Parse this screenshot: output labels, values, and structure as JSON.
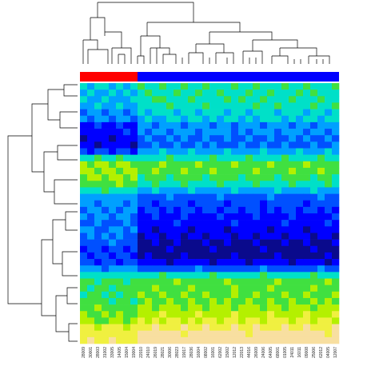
{
  "chart_data": {
    "type": "heatmap",
    "colorscale": [
      "#0a0a8c",
      "#0000ff",
      "#0050ff",
      "#00a0ff",
      "#00e0c8",
      "#40e040",
      "#b4f000",
      "#f0f040",
      "#f8dfa0"
    ],
    "categories": [
      "28009",
      "30001",
      "28003",
      "31002",
      "33005",
      "14005",
      "15004",
      "19004",
      "22010",
      "24010",
      "26019",
      "28021",
      "30006",
      "28023",
      "19017",
      "28036",
      "16004",
      "08002",
      "16001",
      "62002",
      "15002",
      "12012",
      "22013",
      "44016",
      "26009",
      "24006",
      "64005",
      "68001",
      "01005",
      "24011",
      "16011",
      "09008",
      "25006",
      "62012",
      "04005",
      "12007"
    ],
    "values": [
      [
        4,
        3,
        4,
        4,
        3,
        4,
        3,
        4,
        5,
        4,
        4,
        5,
        4,
        4,
        5,
        4,
        4,
        5,
        4,
        4,
        4,
        5,
        4,
        4,
        5,
        4,
        4,
        4,
        5,
        4,
        4,
        5,
        4,
        4,
        4,
        5
      ],
      [
        3,
        4,
        3,
        3,
        4,
        3,
        4,
        3,
        4,
        5,
        4,
        4,
        4,
        5,
        4,
        4,
        5,
        4,
        4,
        5,
        4,
        4,
        4,
        5,
        4,
        4,
        5,
        4,
        4,
        4,
        5,
        4,
        5,
        4,
        4,
        4
      ],
      [
        4,
        3,
        3,
        4,
        3,
        3,
        3,
        4,
        4,
        4,
        5,
        5,
        4,
        4,
        4,
        5,
        4,
        4,
        4,
        4,
        5,
        4,
        5,
        4,
        4,
        5,
        4,
        4,
        4,
        5,
        4,
        4,
        4,
        5,
        4,
        4
      ],
      [
        3,
        3,
        4,
        3,
        3,
        4,
        3,
        3,
        4,
        4,
        4,
        4,
        5,
        4,
        4,
        4,
        4,
        5,
        4,
        4,
        4,
        4,
        4,
        4,
        5,
        4,
        4,
        5,
        4,
        4,
        4,
        4,
        5,
        4,
        4,
        5
      ],
      [
        2,
        3,
        3,
        2,
        3,
        3,
        2,
        3,
        4,
        3,
        4,
        4,
        4,
        3,
        4,
        4,
        3,
        4,
        4,
        4,
        3,
        4,
        4,
        3,
        4,
        4,
        4,
        3,
        4,
        4,
        4,
        3,
        4,
        4,
        3,
        4
      ],
      [
        3,
        2,
        3,
        3,
        2,
        3,
        3,
        2,
        3,
        4,
        3,
        3,
        4,
        4,
        3,
        4,
        4,
        3,
        4,
        3,
        4,
        4,
        3,
        4,
        3,
        4,
        4,
        4,
        3,
        4,
        3,
        4,
        4,
        3,
        4,
        4
      ],
      [
        1,
        1,
        2,
        1,
        1,
        2,
        1,
        1,
        3,
        3,
        2,
        3,
        3,
        3,
        2,
        3,
        3,
        3,
        2,
        3,
        3,
        2,
        3,
        3,
        3,
        2,
        3,
        3,
        3,
        2,
        3,
        3,
        2,
        3,
        3,
        3
      ],
      [
        1,
        1,
        1,
        1,
        1,
        1,
        2,
        1,
        3,
        2,
        3,
        3,
        2,
        3,
        3,
        3,
        2,
        3,
        3,
        3,
        3,
        2,
        3,
        2,
        3,
        3,
        3,
        2,
        3,
        3,
        3,
        2,
        3,
        3,
        2,
        3
      ],
      [
        0,
        1,
        1,
        1,
        0,
        1,
        1,
        1,
        2,
        3,
        2,
        2,
        3,
        2,
        3,
        2,
        2,
        3,
        2,
        2,
        3,
        2,
        2,
        3,
        2,
        2,
        3,
        2,
        2,
        3,
        2,
        3,
        2,
        2,
        3,
        2
      ],
      [
        1,
        1,
        0,
        1,
        1,
        1,
        1,
        0,
        2,
        2,
        3,
        2,
        2,
        3,
        2,
        2,
        3,
        2,
        3,
        2,
        2,
        2,
        3,
        2,
        2,
        3,
        2,
        2,
        3,
        2,
        2,
        2,
        3,
        2,
        2,
        3
      ],
      [
        2,
        1,
        2,
        2,
        1,
        2,
        2,
        1,
        3,
        3,
        3,
        4,
        3,
        3,
        3,
        4,
        3,
        3,
        3,
        3,
        4,
        3,
        3,
        3,
        3,
        4,
        3,
        3,
        3,
        3,
        4,
        3,
        3,
        3,
        4,
        3
      ],
      [
        4,
        4,
        5,
        4,
        4,
        5,
        4,
        4,
        4,
        4,
        4,
        4,
        5,
        4,
        4,
        4,
        4,
        4,
        5,
        4,
        4,
        4,
        4,
        5,
        4,
        4,
        4,
        4,
        5,
        4,
        4,
        4,
        4,
        5,
        4,
        4
      ],
      [
        6,
        5,
        6,
        6,
        5,
        6,
        6,
        5,
        5,
        5,
        5,
        6,
        5,
        5,
        5,
        5,
        6,
        5,
        5,
        5,
        5,
        6,
        5,
        5,
        5,
        5,
        6,
        5,
        5,
        5,
        5,
        6,
        5,
        5,
        5,
        5
      ],
      [
        6,
        6,
        5,
        6,
        6,
        5,
        6,
        6,
        5,
        5,
        6,
        5,
        5,
        5,
        6,
        5,
        5,
        5,
        6,
        5,
        5,
        5,
        5,
        5,
        6,
        5,
        5,
        5,
        5,
        6,
        5,
        5,
        5,
        6,
        5,
        5
      ],
      [
        5,
        6,
        6,
        5,
        6,
        6,
        5,
        6,
        4,
        5,
        5,
        5,
        4,
        5,
        5,
        5,
        5,
        4,
        5,
        5,
        5,
        5,
        4,
        5,
        5,
        5,
        5,
        4,
        5,
        5,
        5,
        5,
        4,
        5,
        5,
        4
      ],
      [
        5,
        5,
        5,
        5,
        5,
        6,
        5,
        5,
        4,
        4,
        5,
        4,
        4,
        4,
        5,
        4,
        4,
        4,
        4,
        5,
        4,
        4,
        4,
        4,
        5,
        4,
        4,
        4,
        4,
        5,
        4,
        4,
        4,
        4,
        5,
        4
      ],
      [
        4,
        4,
        4,
        5,
        4,
        4,
        4,
        4,
        3,
        3,
        4,
        3,
        3,
        3,
        3,
        4,
        3,
        3,
        3,
        3,
        3,
        4,
        3,
        3,
        3,
        3,
        3,
        4,
        3,
        3,
        3,
        3,
        4,
        3,
        3,
        3
      ],
      [
        3,
        3,
        3,
        3,
        3,
        3,
        3,
        3,
        2,
        2,
        2,
        2,
        3,
        2,
        2,
        2,
        2,
        2,
        2,
        3,
        2,
        2,
        2,
        2,
        2,
        2,
        3,
        2,
        2,
        2,
        2,
        2,
        2,
        3,
        2,
        2
      ],
      [
        3,
        3,
        2,
        3,
        3,
        3,
        2,
        3,
        2,
        2,
        1,
        2,
        2,
        2,
        2,
        1,
        2,
        2,
        2,
        2,
        1,
        2,
        2,
        2,
        2,
        1,
        2,
        2,
        2,
        2,
        2,
        1,
        2,
        2,
        2,
        2
      ],
      [
        2,
        3,
        3,
        2,
        3,
        2,
        3,
        3,
        1,
        2,
        2,
        1,
        2,
        1,
        2,
        2,
        1,
        2,
        2,
        1,
        2,
        2,
        1,
        2,
        2,
        1,
        2,
        1,
        2,
        2,
        1,
        2,
        2,
        1,
        2,
        1
      ],
      [
        3,
        2,
        3,
        3,
        2,
        3,
        3,
        2,
        1,
        1,
        2,
        1,
        1,
        1,
        2,
        1,
        1,
        1,
        1,
        2,
        1,
        1,
        1,
        1,
        2,
        1,
        1,
        1,
        1,
        2,
        1,
        1,
        1,
        1,
        1,
        2
      ],
      [
        2,
        2,
        3,
        2,
        2,
        2,
        3,
        2,
        1,
        1,
        1,
        1,
        1,
        2,
        1,
        1,
        1,
        1,
        1,
        1,
        1,
        2,
        1,
        1,
        1,
        1,
        1,
        1,
        2,
        1,
        1,
        1,
        1,
        1,
        2,
        1
      ],
      [
        3,
        3,
        2,
        2,
        3,
        3,
        2,
        3,
        1,
        1,
        0,
        1,
        1,
        1,
        1,
        0,
        1,
        1,
        1,
        1,
        0,
        1,
        1,
        1,
        1,
        1,
        0,
        1,
        1,
        1,
        1,
        0,
        1,
        1,
        1,
        1
      ],
      [
        2,
        3,
        2,
        3,
        2,
        3,
        2,
        2,
        0,
        1,
        1,
        0,
        1,
        1,
        0,
        1,
        1,
        0,
        1,
        1,
        1,
        0,
        1,
        1,
        0,
        1,
        1,
        1,
        0,
        1,
        1,
        1,
        0,
        1,
        1,
        0
      ],
      [
        2,
        2,
        2,
        2,
        3,
        2,
        2,
        2,
        0,
        0,
        1,
        0,
        0,
        1,
        0,
        0,
        0,
        1,
        0,
        0,
        1,
        0,
        0,
        0,
        1,
        0,
        0,
        0,
        1,
        0,
        0,
        1,
        0,
        0,
        0,
        1
      ],
      [
        1,
        2,
        2,
        1,
        2,
        2,
        1,
        2,
        0,
        0,
        0,
        0,
        1,
        0,
        0,
        0,
        0,
        0,
        1,
        0,
        0,
        0,
        0,
        0,
        0,
        1,
        0,
        0,
        0,
        0,
        0,
        0,
        1,
        0,
        0,
        0
      ],
      [
        2,
        1,
        2,
        2,
        1,
        2,
        2,
        1,
        0,
        1,
        0,
        0,
        0,
        0,
        1,
        0,
        0,
        0,
        0,
        0,
        0,
        1,
        0,
        0,
        0,
        0,
        0,
        1,
        0,
        0,
        0,
        0,
        0,
        0,
        1,
        0
      ],
      [
        2,
        2,
        1,
        2,
        2,
        1,
        2,
        2,
        1,
        1,
        1,
        1,
        0,
        1,
        1,
        1,
        1,
        1,
        0,
        1,
        1,
        1,
        1,
        0,
        1,
        1,
        1,
        1,
        1,
        0,
        1,
        1,
        1,
        1,
        0,
        1
      ],
      [
        3,
        3,
        3,
        2,
        3,
        3,
        3,
        3,
        2,
        2,
        2,
        2,
        2,
        2,
        2,
        2,
        3,
        2,
        2,
        2,
        2,
        2,
        2,
        2,
        2,
        3,
        2,
        2,
        2,
        2,
        2,
        2,
        2,
        3,
        2,
        2
      ],
      [
        4,
        4,
        4,
        4,
        4,
        4,
        4,
        4,
        4,
        4,
        4,
        5,
        4,
        4,
        4,
        4,
        4,
        4,
        5,
        4,
        4,
        4,
        4,
        4,
        4,
        5,
        4,
        4,
        4,
        4,
        4,
        4,
        5,
        4,
        4,
        4
      ],
      [
        5,
        5,
        4,
        5,
        5,
        5,
        4,
        5,
        5,
        5,
        5,
        5,
        5,
        6,
        5,
        5,
        5,
        5,
        5,
        5,
        6,
        5,
        5,
        5,
        5,
        5,
        5,
        6,
        5,
        5,
        5,
        5,
        5,
        5,
        6,
        5
      ],
      [
        5,
        4,
        5,
        5,
        4,
        5,
        5,
        5,
        5,
        5,
        6,
        5,
        5,
        5,
        5,
        6,
        5,
        5,
        5,
        5,
        5,
        6,
        5,
        5,
        5,
        5,
        6,
        5,
        5,
        5,
        5,
        5,
        6,
        5,
        5,
        5
      ],
      [
        4,
        5,
        5,
        4,
        5,
        4,
        5,
        5,
        6,
        5,
        5,
        6,
        5,
        5,
        6,
        5,
        5,
        6,
        5,
        5,
        5,
        6,
        5,
        5,
        6,
        5,
        5,
        5,
        6,
        5,
        5,
        6,
        5,
        5,
        5,
        6
      ],
      [
        5,
        5,
        5,
        5,
        4,
        5,
        5,
        4,
        5,
        6,
        5,
        5,
        6,
        5,
        5,
        6,
        5,
        5,
        6,
        5,
        6,
        5,
        5,
        6,
        5,
        5,
        6,
        5,
        5,
        6,
        5,
        5,
        6,
        5,
        6,
        5
      ],
      [
        5,
        5,
        6,
        5,
        5,
        5,
        5,
        5,
        6,
        6,
        5,
        6,
        6,
        6,
        5,
        6,
        6,
        5,
        6,
        6,
        6,
        5,
        6,
        6,
        6,
        5,
        6,
        6,
        5,
        6,
        6,
        6,
        5,
        6,
        6,
        6
      ],
      [
        6,
        5,
        5,
        6,
        5,
        6,
        5,
        5,
        6,
        6,
        6,
        7,
        6,
        6,
        6,
        6,
        7,
        6,
        6,
        6,
        6,
        7,
        6,
        6,
        6,
        6,
        7,
        6,
        6,
        6,
        6,
        7,
        6,
        6,
        6,
        7
      ],
      [
        6,
        6,
        5,
        5,
        6,
        6,
        5,
        6,
        7,
        6,
        7,
        6,
        7,
        7,
        6,
        7,
        6,
        7,
        7,
        6,
        7,
        7,
        6,
        7,
        7,
        6,
        7,
        7,
        7,
        6,
        7,
        7,
        6,
        7,
        7,
        6
      ],
      [
        7,
        7,
        6,
        7,
        7,
        7,
        6,
        7,
        7,
        7,
        8,
        7,
        7,
        7,
        8,
        7,
        7,
        8,
        7,
        7,
        7,
        8,
        7,
        7,
        8,
        7,
        7,
        7,
        8,
        7,
        7,
        8,
        7,
        7,
        7,
        8
      ],
      [
        7,
        7,
        7,
        7,
        7,
        7,
        7,
        7,
        8,
        8,
        8,
        8,
        8,
        8,
        7,
        8,
        8,
        8,
        8,
        8,
        8,
        8,
        8,
        7,
        8,
        8,
        8,
        8,
        8,
        8,
        8,
        8,
        8,
        8,
        7,
        8
      ],
      [
        7,
        8,
        7,
        7,
        8,
        7,
        7,
        7,
        8,
        8,
        8,
        8,
        8,
        8,
        8,
        8,
        8,
        8,
        8,
        8,
        8,
        8,
        8,
        8,
        8,
        8,
        8,
        8,
        8,
        8,
        8,
        8,
        8,
        8,
        8,
        8
      ]
    ]
  }
}
